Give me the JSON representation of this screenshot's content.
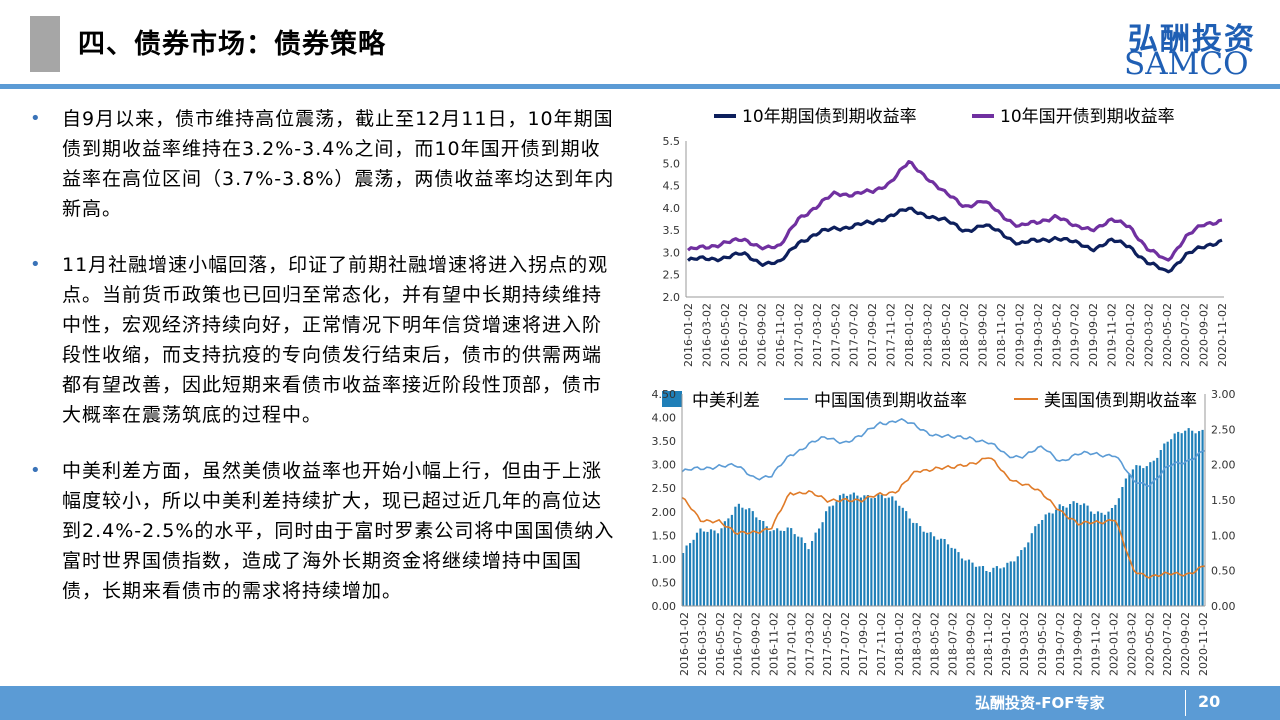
{
  "header": {
    "title": "四、债券市场：债券策略",
    "logo_cn": "弘酬投资",
    "logo_en": "SAMCO"
  },
  "bullets": [
    "自9月以来，债市维持高位震荡，截止至12月11日，10年期国债到期收益率维持在3.2%-3.4%之间，而10年国开债到期收益率在高位区间（3.7%-3.8%）震荡，两债收益率均达到年内新高。",
    "11月社融增速小幅回落，印证了前期社融增速将进入拐点的观点。当前货币政策也已回归至常态化，并有望中长期持续维持中性，宏观经济持续向好，正常情况下明年信贷增速将进入阶段性收缩，而支持抗疫的专向债发行结束后，债市的供需两端都有望改善，因此短期来看债市收益率接近阶段性顶部，债市大概率在震荡筑底的过程中。",
    "中美利差方面，虽然美债收益率也开始小幅上行，但由于上涨幅度较小，所以中美利差持续扩大，现已超过近几年的高位达到2.4%-2.5%的水平，同时由于富时罗素公司将中国国债纳入富时世界国债指数，造成了海外长期资金将继续增持中国国债，长期来看债市的需求将持续增加。"
  ],
  "footer": {
    "text": "弘酬投资-FOF专家",
    "page": "20"
  },
  "colors": {
    "accent": "#5b9bd5",
    "series_cgb": "#0d1f5c",
    "series_cdb": "#7030a0",
    "spread_bar": "#1f7fb8",
    "cn_line": "#5b9bd5",
    "us_line": "#e07b28"
  },
  "chart_data": [
    {
      "type": "line",
      "x_ticks": [
        "2016-01-02",
        "2016-03-02",
        "2016-05-02",
        "2016-07-02",
        "2016-09-02",
        "2016-11-02",
        "2017-01-02",
        "2017-03-02",
        "2017-05-02",
        "2017-07-02",
        "2017-09-02",
        "2017-11-02",
        "2018-01-02",
        "2018-03-02",
        "2018-05-02",
        "2018-07-02",
        "2018-09-02",
        "2018-11-02",
        "2019-01-02",
        "2019-03-02",
        "2019-05-02",
        "2019-07-02",
        "2019-09-02",
        "2019-11-02",
        "2020-01-02",
        "2020-03-02",
        "2020-05-02",
        "2020-07-02",
        "2020-09-02",
        "2020-11-02"
      ],
      "y_ticks": [
        "2.0",
        "2.5",
        "3.0",
        "3.5",
        "4.0",
        "4.5",
        "5.0",
        "5.5"
      ],
      "ylim": [
        2.0,
        5.5
      ],
      "series": [
        {
          "name": "10年期国债到期收益率",
          "values": [
            2.82,
            2.85,
            2.9,
            2.95,
            2.78,
            2.75,
            3.25,
            3.4,
            3.55,
            3.6,
            3.65,
            3.85,
            3.95,
            3.85,
            3.7,
            3.5,
            3.6,
            3.45,
            3.2,
            3.25,
            3.35,
            3.2,
            3.1,
            3.25,
            3.15,
            2.75,
            2.55,
            2.95,
            3.1,
            3.3
          ]
        },
        {
          "name": "10年国开债到期收益率",
          "values": [
            3.05,
            3.1,
            3.25,
            3.25,
            3.15,
            3.1,
            3.8,
            4.0,
            4.35,
            4.3,
            4.35,
            4.6,
            5.0,
            4.7,
            4.3,
            4.05,
            4.15,
            3.85,
            3.6,
            3.65,
            3.85,
            3.55,
            3.55,
            3.7,
            3.6,
            3.05,
            2.8,
            3.35,
            3.6,
            3.75
          ]
        }
      ]
    },
    {
      "type": "bar",
      "x_ticks": [
        "2016-01-02",
        "2016-03-02",
        "2016-05-02",
        "2016-07-02",
        "2016-09-02",
        "2016-11-02",
        "2017-01-02",
        "2017-03-02",
        "2017-05-02",
        "2017-07-02",
        "2017-09-02",
        "2017-11-02",
        "2018-01-02",
        "2018-03-02",
        "2018-05-02",
        "2018-07-02",
        "2018-09-02",
        "2018-11-02",
        "2019-01-02",
        "2019-03-02",
        "2019-05-02",
        "2019-07-02",
        "2019-09-02",
        "2019-11-02",
        "2020-01-02",
        "2020-03-02",
        "2020-05-02",
        "2020-07-02",
        "2020-09-02",
        "2020-11-02"
      ],
      "y_ticks_left": [
        "0.00",
        "0.50",
        "1.00",
        "1.50",
        "2.00",
        "2.50",
        "3.00",
        "3.50",
        "4.00",
        "4.50"
      ],
      "y_ticks_right": [
        "0.00",
        "0.50",
        "1.00",
        "1.50",
        "2.00",
        "2.50",
        "3.00"
      ],
      "ylim_left": [
        0,
        4.5
      ],
      "ylim_right": [
        0,
        3.0
      ],
      "series": [
        {
          "name": "中美利差",
          "axis": "right",
          "values": [
            0.75,
            1.05,
            1.1,
            1.4,
            1.3,
            1.1,
            1.05,
            0.85,
            1.35,
            1.55,
            1.6,
            1.55,
            1.45,
            1.2,
            0.95,
            0.85,
            0.65,
            0.45,
            0.6,
            0.8,
            1.2,
            1.45,
            1.45,
            1.3,
            1.4,
            1.9,
            2.0,
            2.35,
            2.45,
            2.5
          ]
        },
        {
          "name": "中国国债到期收益率",
          "axis": "left",
          "values": [
            2.85,
            2.9,
            3.0,
            2.95,
            2.75,
            2.75,
            3.2,
            3.45,
            3.55,
            3.5,
            3.6,
            3.9,
            3.95,
            3.8,
            3.65,
            3.55,
            3.6,
            3.45,
            3.2,
            3.2,
            3.35,
            3.1,
            3.2,
            3.25,
            3.2,
            2.65,
            2.6,
            2.95,
            3.1,
            3.3
          ]
        },
        {
          "name": "美国国债到期收益率",
          "axis": "left",
          "values": [
            2.3,
            1.8,
            1.85,
            1.5,
            1.6,
            1.65,
            2.4,
            2.45,
            2.2,
            2.3,
            2.2,
            2.4,
            2.45,
            2.85,
            2.95,
            2.9,
            3.05,
            3.15,
            2.75,
            2.6,
            2.35,
            2.05,
            1.7,
            1.8,
            1.85,
            0.75,
            0.65,
            0.65,
            0.7,
            0.85
          ]
        }
      ]
    }
  ]
}
